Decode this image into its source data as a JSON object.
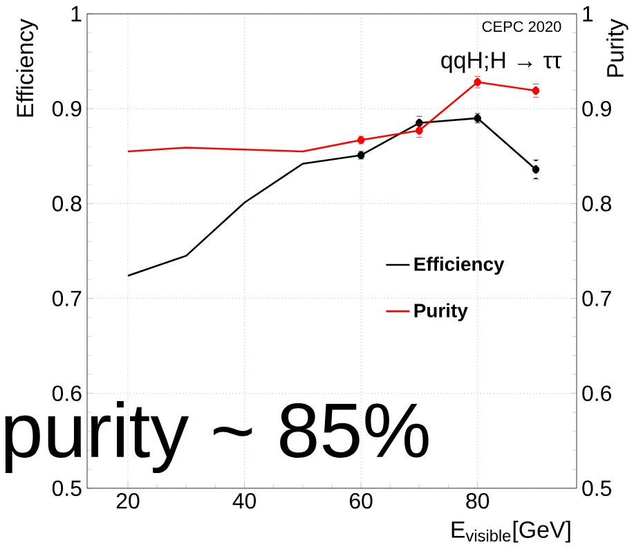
{
  "chart_data": {
    "type": "line",
    "x": [
      20,
      30,
      40,
      50,
      60,
      70,
      80,
      90
    ],
    "series": [
      {
        "name": "Efficiency",
        "color": "#000000",
        "axis": "y",
        "values": [
          0.724,
          0.745,
          0.801,
          0.842,
          0.851,
          0.885,
          0.89,
          0.836
        ],
        "errors": [
          null,
          null,
          null,
          null,
          0.004,
          0.007,
          0.005,
          0.01
        ]
      },
      {
        "name": "Purity",
        "color": "#ff0000",
        "axis": "y2",
        "values": [
          0.855,
          0.859,
          0.857,
          0.855,
          0.867,
          0.877,
          0.928,
          0.919
        ],
        "errors": [
          null,
          null,
          null,
          null,
          0.004,
          0.007,
          0.006,
          0.007
        ]
      }
    ],
    "xlim": [
      13,
      97
    ],
    "xticks": [
      20,
      40,
      60,
      80
    ],
    "ylim": [
      0.5,
      1
    ],
    "yticks": [
      0.5,
      0.6,
      0.7,
      0.8,
      0.9,
      1
    ],
    "y2lim": [
      0.5,
      1
    ],
    "y2ticks": [
      0.5,
      0.6,
      0.7,
      0.8,
      0.9,
      1
    ],
    "xlabel": "E$_{visible}$[GeV]",
    "ylabel": "Efficiency",
    "y2label": "Purity",
    "annotations": [
      "CEPC 2020",
      "qqH;H → ττ",
      "purity ~ 85%"
    ],
    "grid": true,
    "legend": "right"
  }
}
